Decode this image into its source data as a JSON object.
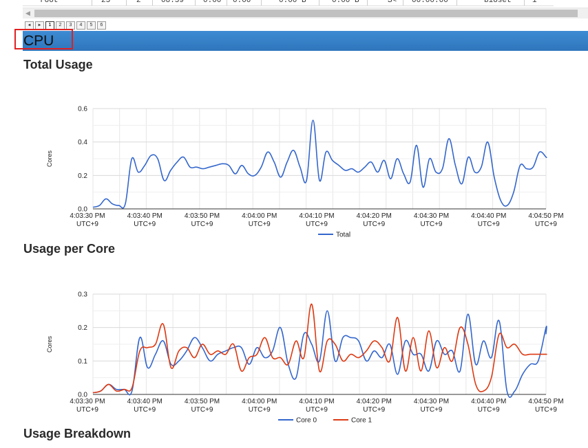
{
  "table": {
    "cells": [
      "root",
      "25",
      "2",
      "08:59",
      "0.00",
      "0.00",
      "0.00 B",
      "0.00 B",
      "S<",
      "00:00:00",
      "bioset",
      "1"
    ]
  },
  "pager": {
    "prev": "◄",
    "next": "►",
    "pages": [
      "1",
      "2",
      "3",
      "4",
      "5",
      "6"
    ],
    "current": "1"
  },
  "cpu": {
    "title": "CPU"
  },
  "sections": {
    "total_usage": "Total Usage",
    "usage_per_core": "Usage per Core",
    "usage_breakdown": "Usage Breakdown"
  },
  "colors": {
    "header_bar": "#3a87cf",
    "highlight": "#e02020",
    "total": "#3366cc",
    "core0": "#3366cc",
    "core1": "#dc3912"
  },
  "chart_data": [
    {
      "type": "line",
      "ylabel": "Cores",
      "ylim": [
        0,
        0.6
      ],
      "yticks": [
        "0.0",
        "0.2",
        "0.4",
        "0.6"
      ],
      "xticks": [
        [
          "4:03:30 PM",
          "UTC+9"
        ],
        [
          "4:03:40 PM",
          "UTC+9"
        ],
        [
          "4:03:50 PM",
          "UTC+9"
        ],
        [
          "4:04:00 PM",
          "UTC+9"
        ],
        [
          "4:04:10 PM",
          "UTC+9"
        ],
        [
          "4:04:20 PM",
          "UTC+9"
        ],
        [
          "4:04:30 PM",
          "UTC+9"
        ],
        [
          "4:04:40 PM",
          "UTC+9"
        ],
        [
          "4:04:50 PM",
          "UTC+9"
        ]
      ],
      "grid": true,
      "legend": "bottom",
      "series": [
        {
          "name": "Total",
          "color": "#3366cc",
          "x": [
            0,
            1,
            2,
            3,
            4,
            5,
            6,
            7,
            8,
            9,
            10,
            11,
            12,
            13,
            14,
            15,
            16,
            17,
            18,
            19,
            20,
            21,
            22,
            23,
            24,
            25,
            26,
            27,
            28,
            29,
            30,
            31,
            32,
            33,
            34,
            35,
            36,
            37,
            38,
            39,
            40,
            41,
            42,
            43,
            44,
            45,
            46,
            47,
            48,
            49,
            50,
            51,
            52,
            53,
            54,
            55,
            56,
            57,
            58,
            59,
            60,
            61,
            62,
            63,
            64,
            65,
            66,
            67,
            68,
            69,
            70,
            71,
            72,
            73,
            74,
            75,
            76,
            77,
            78,
            79,
            80,
            81,
            82,
            83,
            84,
            85,
            86
          ],
          "values": [
            0.01,
            0.02,
            0.06,
            0.03,
            0.02,
            0.03,
            0.3,
            0.22,
            0.26,
            0.32,
            0.3,
            0.17,
            0.23,
            0.28,
            0.31,
            0.25,
            0.25,
            0.24,
            0.25,
            0.26,
            0.27,
            0.26,
            0.21,
            0.26,
            0.21,
            0.2,
            0.25,
            0.34,
            0.28,
            0.19,
            0.28,
            0.35,
            0.25,
            0.17,
            0.53,
            0.17,
            0.34,
            0.29,
            0.26,
            0.23,
            0.24,
            0.22,
            0.25,
            0.28,
            0.22,
            0.29,
            0.18,
            0.3,
            0.21,
            0.16,
            0.38,
            0.13,
            0.3,
            0.22,
            0.24,
            0.42,
            0.26,
            0.15,
            0.31,
            0.22,
            0.25,
            0.4,
            0.19,
            0.05,
            0.02,
            0.1,
            0.26,
            0.24,
            0.25,
            0.34,
            0.31,
            0.31,
            0.31,
            0.31,
            0.31,
            0.31,
            0.31,
            0.31,
            0.31,
            0.31,
            0.31,
            0.31,
            0.31,
            0.31,
            0.31,
            0.31,
            0.31
          ]
        }
      ]
    },
    {
      "type": "line",
      "ylabel": "Cores",
      "ylim": [
        0,
        0.3
      ],
      "yticks": [
        "0.0",
        "0.1",
        "0.2",
        "0.3"
      ],
      "xticks": [
        [
          "4:03:30 PM",
          "UTC+9"
        ],
        [
          "4:03:40 PM",
          "UTC+9"
        ],
        [
          "4:03:50 PM",
          "UTC+9"
        ],
        [
          "4:04:00 PM",
          "UTC+9"
        ],
        [
          "4:04:10 PM",
          "UTC+9"
        ],
        [
          "4:04:20 PM",
          "UTC+9"
        ],
        [
          "4:04:30 PM",
          "UTC+9"
        ],
        [
          "4:04:40 PM",
          "UTC+9"
        ],
        [
          "4:04:50 PM",
          "UTC+9"
        ]
      ],
      "grid": true,
      "legend": "bottom",
      "series": [
        {
          "name": "Core 0",
          "color": "#3366cc",
          "values": [
            0.005,
            0.01,
            0.03,
            0.015,
            0.015,
            0.01,
            0.17,
            0.08,
            0.12,
            0.16,
            0.09,
            0.1,
            0.13,
            0.17,
            0.14,
            0.1,
            0.12,
            0.13,
            0.14,
            0.14,
            0.09,
            0.14,
            0.11,
            0.13,
            0.2,
            0.09,
            0.05,
            0.18,
            0.15,
            0.1,
            0.25,
            0.1,
            0.17,
            0.17,
            0.16,
            0.1,
            0.13,
            0.11,
            0.15,
            0.06,
            0.16,
            0.12,
            0.12,
            0.07,
            0.16,
            0.12,
            0.13,
            0.07,
            0.24,
            0.09,
            0.16,
            0.11,
            0.22,
            0.01,
            0.01,
            0.06,
            0.09,
            0.1,
            0.2,
            0.18
          ]
        },
        {
          "name": "Core 1",
          "color": "#dc3912",
          "values": [
            0.005,
            0.01,
            0.03,
            0.01,
            0.015,
            0.02,
            0.13,
            0.14,
            0.15,
            0.21,
            0.08,
            0.13,
            0.14,
            0.11,
            0.15,
            0.12,
            0.13,
            0.12,
            0.15,
            0.07,
            0.11,
            0.12,
            0.17,
            0.11,
            0.11,
            0.09,
            0.16,
            0.11,
            0.27,
            0.07,
            0.16,
            0.15,
            0.1,
            0.12,
            0.11,
            0.13,
            0.16,
            0.14,
            0.1,
            0.23,
            0.07,
            0.17,
            0.07,
            0.19,
            0.08,
            0.14,
            0.1,
            0.2,
            0.15,
            0.03,
            0.01,
            0.05,
            0.18,
            0.14,
            0.15,
            0.12,
            0.12,
            0.12,
            0.12,
            0.12
          ]
        }
      ]
    }
  ]
}
